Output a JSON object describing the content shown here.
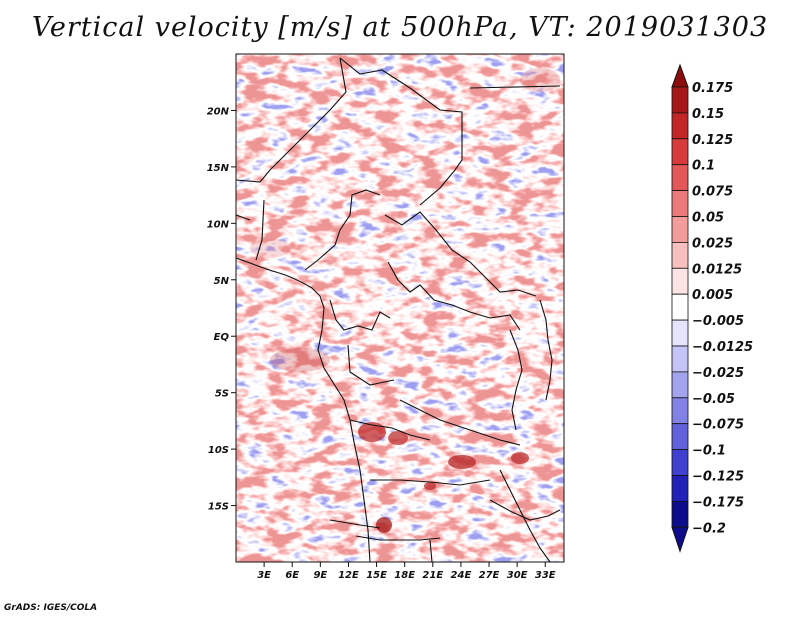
{
  "title": "Vertical velocity [m/s] at 500hPa, VT: 2019031303",
  "credit": "GrADS: IGES/COLA",
  "map": {
    "lat_labels": [
      "20N",
      "15N",
      "10N",
      "5N",
      "EQ",
      "5S",
      "10S",
      "15S"
    ],
    "lat_values": [
      20,
      15,
      10,
      5,
      0,
      -5,
      -10,
      -15
    ],
    "lon_labels": [
      "3E",
      "6E",
      "9E",
      "12E",
      "15E",
      "18E",
      "21E",
      "24E",
      "27E",
      "30E",
      "33E"
    ],
    "lon_values": [
      3,
      6,
      9,
      12,
      15,
      18,
      21,
      24,
      27,
      30,
      33
    ],
    "lon_range": [
      0,
      35
    ],
    "lat_range": [
      -20,
      25
    ]
  },
  "colorbar": {
    "labels": [
      "0.175",
      "0.15",
      "0.125",
      "0.1",
      "0.075",
      "0.05",
      "0.025",
      "0.0125",
      "0.005",
      "−0.005",
      "−0.0125",
      "−0.025",
      "−0.05",
      "−0.075",
      "−0.1",
      "−0.125",
      "−0.175",
      "−0.2"
    ],
    "colors": [
      "#8b0d0d",
      "#a81717",
      "#c22626",
      "#d63a3a",
      "#e35858",
      "#ec7a7a",
      "#f29c9c",
      "#f8bfbf",
      "#fde4e4",
      "#ffffff",
      "#e4e4fd",
      "#c4c4f6",
      "#a3a3ee",
      "#8282e6",
      "#6262dd",
      "#3f3fd0",
      "#2121b8",
      "#0d0d8c"
    ]
  }
}
